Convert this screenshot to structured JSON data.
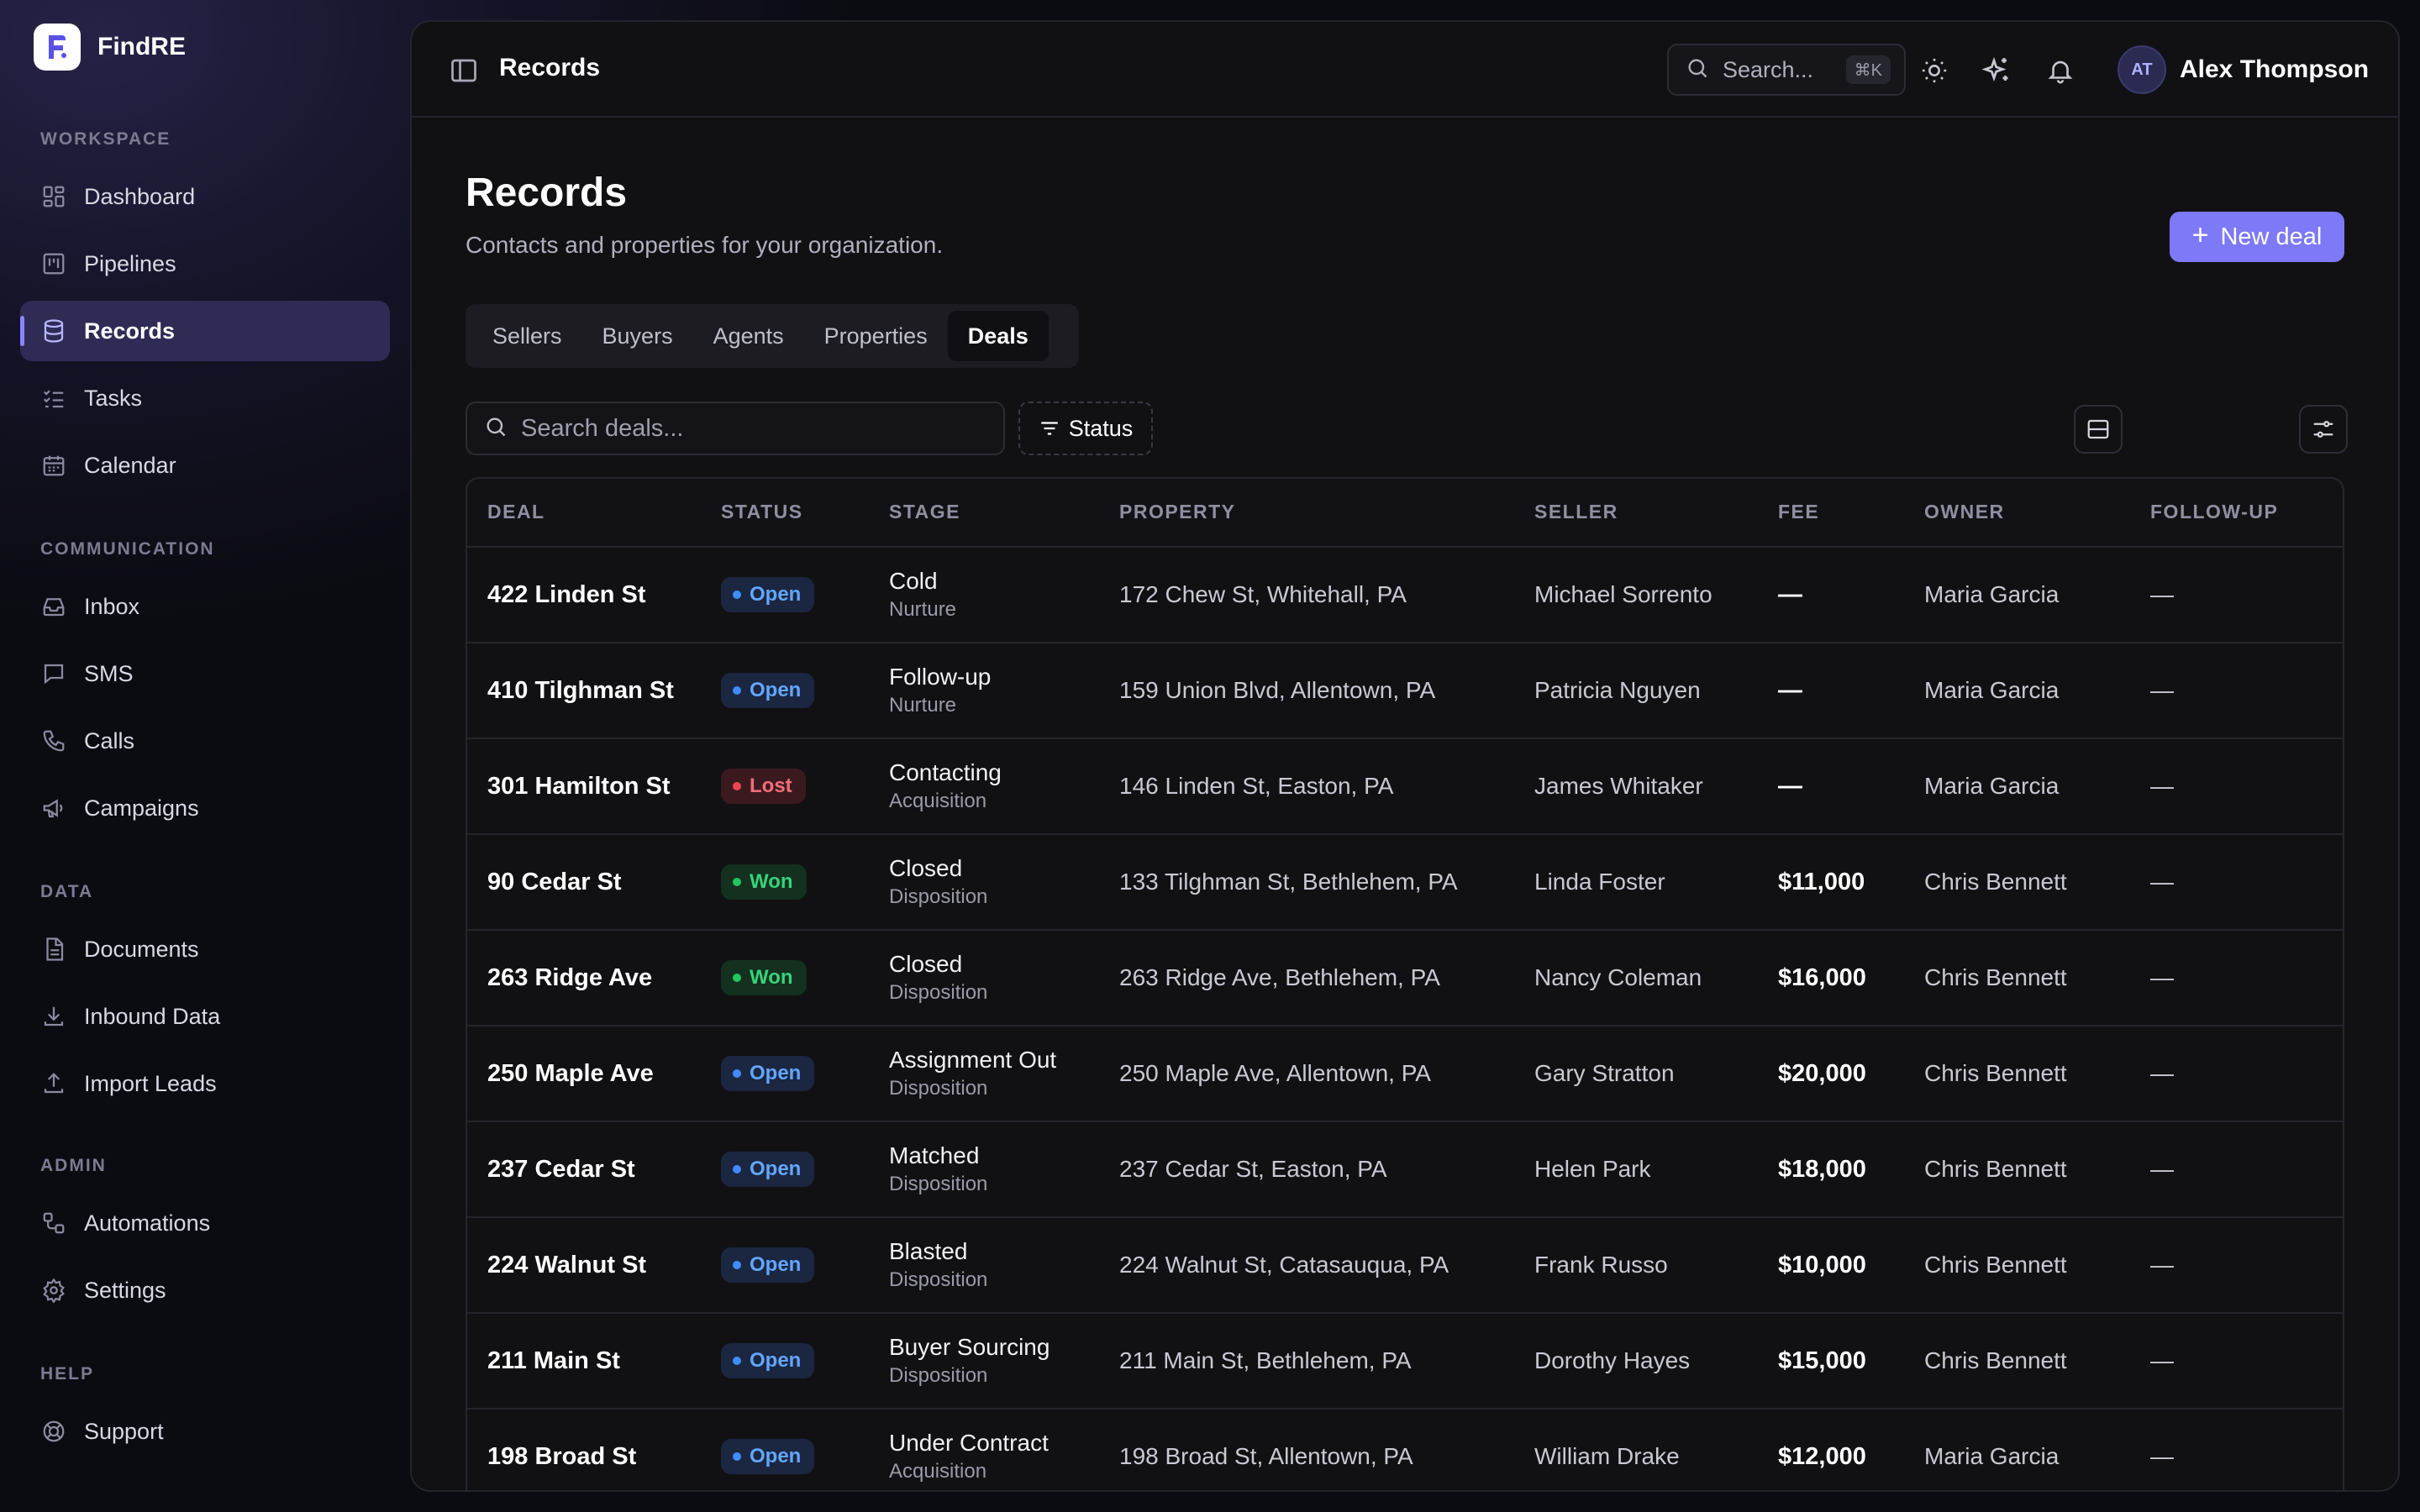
{
  "app": {
    "name": "FindRE"
  },
  "sidebar": {
    "sections": [
      {
        "title": "WORKSPACE",
        "items": [
          {
            "label": "Dashboard",
            "icon": "dashboard-icon"
          },
          {
            "label": "Pipelines",
            "icon": "pipelines-icon"
          },
          {
            "label": "Records",
            "icon": "database-icon",
            "active": true
          },
          {
            "label": "Tasks",
            "icon": "tasks-icon"
          },
          {
            "label": "Calendar",
            "icon": "calendar-icon"
          }
        ]
      },
      {
        "title": "COMMUNICATION",
        "items": [
          {
            "label": "Inbox",
            "icon": "inbox-icon"
          },
          {
            "label": "SMS",
            "icon": "message-icon"
          },
          {
            "label": "Calls",
            "icon": "phone-icon"
          },
          {
            "label": "Campaigns",
            "icon": "megaphone-icon"
          }
        ]
      },
      {
        "title": "DATA",
        "items": [
          {
            "label": "Documents",
            "icon": "document-icon"
          },
          {
            "label": "Inbound Data",
            "icon": "download-icon"
          },
          {
            "label": "Import Leads",
            "icon": "upload-icon"
          }
        ]
      },
      {
        "title": "ADMIN",
        "items": [
          {
            "label": "Automations",
            "icon": "automations-icon"
          },
          {
            "label": "Settings",
            "icon": "gear-icon"
          }
        ]
      },
      {
        "title": "HELP",
        "items": [
          {
            "label": "Support",
            "icon": "lifebuoy-icon"
          }
        ]
      }
    ]
  },
  "topbar": {
    "breadcrumb": "Records",
    "search_placeholder": "Search...",
    "search_shortcut": "⌘K",
    "user": {
      "initials": "AT",
      "name": "Alex Thompson"
    }
  },
  "page": {
    "title": "Records",
    "subtitle": "Contacts and properties for your organization.",
    "new_button": "New deal",
    "tabs": [
      {
        "label": "Sellers"
      },
      {
        "label": "Buyers"
      },
      {
        "label": "Agents"
      },
      {
        "label": "Properties"
      },
      {
        "label": "Deals",
        "active": true
      }
    ],
    "search_placeholder": "Search deals...",
    "status_filter": "Status"
  },
  "table": {
    "columns": [
      "DEAL",
      "STATUS",
      "STAGE",
      "PROPERTY",
      "SELLER",
      "FEE",
      "OWNER",
      "FOLLOW-UP"
    ],
    "rows": [
      {
        "deal": "422 Linden St",
        "status": "Open",
        "stage": "Cold",
        "stage_group": "Nurture",
        "property": "172 Chew St, Whitehall, PA",
        "seller": "Michael Sorrento",
        "fee": "—",
        "owner": "Maria Garcia",
        "follow_up": "—"
      },
      {
        "deal": "410 Tilghman St",
        "status": "Open",
        "stage": "Follow-up",
        "stage_group": "Nurture",
        "property": "159 Union Blvd, Allentown, PA",
        "seller": "Patricia Nguyen",
        "fee": "—",
        "owner": "Maria Garcia",
        "follow_up": "—"
      },
      {
        "deal": "301 Hamilton St",
        "status": "Lost",
        "stage": "Contacting",
        "stage_group": "Acquisition",
        "property": "146 Linden St, Easton, PA",
        "seller": "James Whitaker",
        "fee": "—",
        "owner": "Maria Garcia",
        "follow_up": "—"
      },
      {
        "deal": "90 Cedar St",
        "status": "Won",
        "stage": "Closed",
        "stage_group": "Disposition",
        "property": "133 Tilghman St, Bethlehem, PA",
        "seller": "Linda Foster",
        "fee": "$11,000",
        "owner": "Chris Bennett",
        "follow_up": "—"
      },
      {
        "deal": "263 Ridge Ave",
        "status": "Won",
        "stage": "Closed",
        "stage_group": "Disposition",
        "property": "263 Ridge Ave, Bethlehem, PA",
        "seller": "Nancy Coleman",
        "fee": "$16,000",
        "owner": "Chris Bennett",
        "follow_up": "—"
      },
      {
        "deal": "250 Maple Ave",
        "status": "Open",
        "stage": "Assignment Out",
        "stage_group": "Disposition",
        "property": "250 Maple Ave, Allentown, PA",
        "seller": "Gary Stratton",
        "fee": "$20,000",
        "owner": "Chris Bennett",
        "follow_up": "—"
      },
      {
        "deal": "237 Cedar St",
        "status": "Open",
        "stage": "Matched",
        "stage_group": "Disposition",
        "property": "237 Cedar St, Easton, PA",
        "seller": "Helen Park",
        "fee": "$18,000",
        "owner": "Chris Bennett",
        "follow_up": "—"
      },
      {
        "deal": "224 Walnut St",
        "status": "Open",
        "stage": "Blasted",
        "stage_group": "Disposition",
        "property": "224 Walnut St, Catasauqua, PA",
        "seller": "Frank Russo",
        "fee": "$10,000",
        "owner": "Chris Bennett",
        "follow_up": "—"
      },
      {
        "deal": "211 Main St",
        "status": "Open",
        "stage": "Buyer Sourcing",
        "stage_group": "Disposition",
        "property": "211 Main St, Bethlehem, PA",
        "seller": "Dorothy Hayes",
        "fee": "$15,000",
        "owner": "Chris Bennett",
        "follow_up": "—"
      },
      {
        "deal": "198 Broad St",
        "status": "Open",
        "stage": "Under Contract",
        "stage_group": "Acquisition",
        "property": "198 Broad St, Allentown, PA",
        "seller": "William Drake",
        "fee": "$12,000",
        "owner": "Maria Garcia",
        "follow_up": "—"
      }
    ]
  },
  "colors": {
    "accent": "#7d79f7",
    "open": "#3f8cff",
    "lost": "#ef4454",
    "won": "#22c55e"
  }
}
